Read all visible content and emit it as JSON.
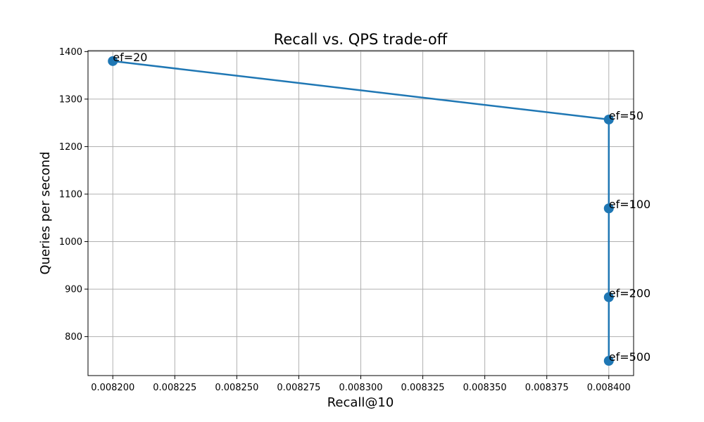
{
  "chart_data": {
    "type": "line",
    "title": "Recall vs. QPS trade-off",
    "xlabel": "Recall@10",
    "ylabel": "Queries per second",
    "xlim": [
      0.00819,
      0.00841
    ],
    "ylim": [
      718,
      1402
    ],
    "xticks": [
      0.0082,
      0.008225,
      0.00825,
      0.008275,
      0.0083,
      0.008325,
      0.00835,
      0.008375,
      0.0084
    ],
    "xtick_labels": [
      "0.008200",
      "0.008225",
      "0.008250",
      "0.008275",
      "0.008300",
      "0.008325",
      "0.008350",
      "0.008375",
      "0.008400"
    ],
    "yticks": [
      800,
      900,
      1000,
      1100,
      1200,
      1300,
      1400
    ],
    "ytick_labels": [
      "800",
      "900",
      "1000",
      "1100",
      "1200",
      "1300",
      "1400"
    ],
    "grid": true,
    "series": [
      {
        "color": "#1f77b4",
        "points": [
          {
            "x": 0.0082,
            "y": 1380,
            "label": "ef=20"
          },
          {
            "x": 0.0084,
            "y": 1257,
            "label": "ef=50"
          },
          {
            "x": 0.0084,
            "y": 1070,
            "label": "ef=100"
          },
          {
            "x": 0.0084,
            "y": 883,
            "label": "ef=200"
          },
          {
            "x": 0.0084,
            "y": 749,
            "label": "ef=500"
          }
        ]
      }
    ]
  }
}
